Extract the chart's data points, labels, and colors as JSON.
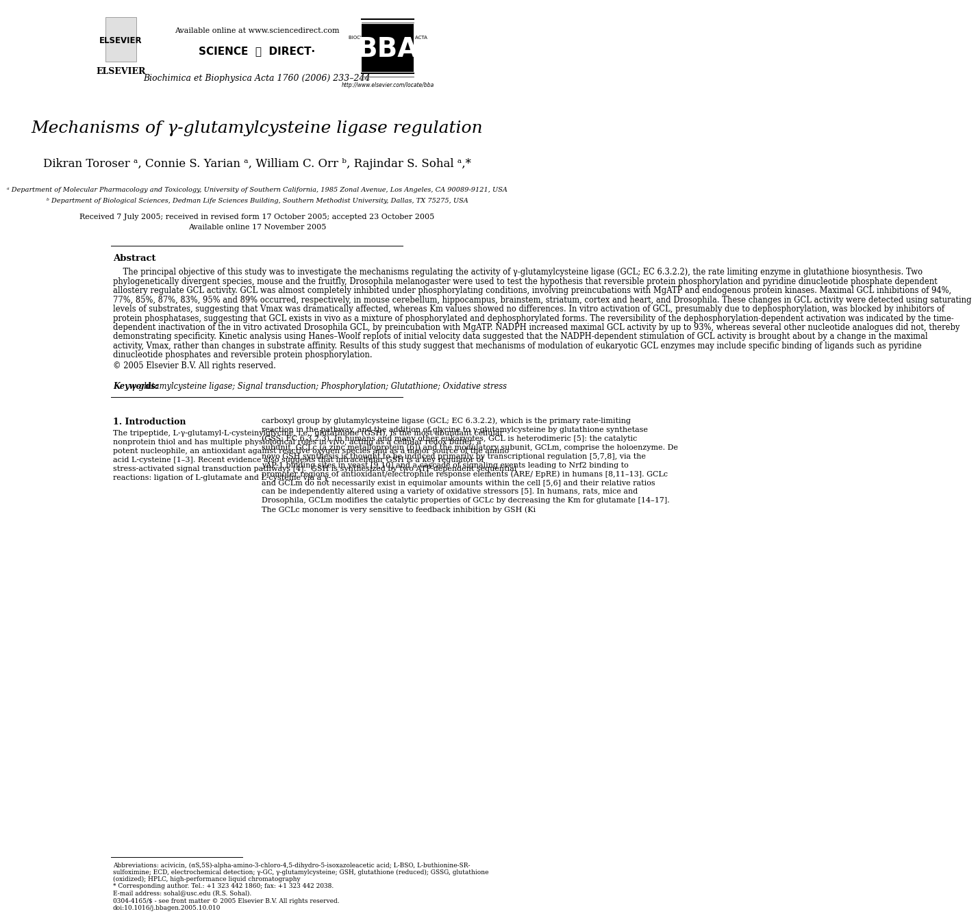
{
  "bg_color": "#ffffff",
  "title": "Mechanisms of γ-glutamylcysteine ligase regulation",
  "authors": "Dikran Toroser ᵃ, Connie S. Yarian ᵃ, William C. Orr ᵇ, Rajindar S. Sohal ᵃ,*",
  "affil_a": "ᵃ Department of Molecular Pharmacology and Toxicology, University of Southern California, 1985 Zonal Avenue, Los Angeles, CA 90089-9121, USA",
  "affil_b": "ᵇ Department of Biological Sciences, Dedman Life Sciences Building, Southern Methodist University, Dallas, TX 75275, USA",
  "received": "Received 7 July 2005; received in revised form 17 October 2005; accepted 23 October 2005",
  "available": "Available online 17 November 2005",
  "header_center_line1": "Available online at www.sciencedirect.com",
  "header_journal": "Biochimica et Biophysica Acta 1760 (2006) 233–244",
  "header_url": "http://www.elsevier.com/locate/bba",
  "abstract_label": "Abstract",
  "abstract_text": "The principal objective of this study was to investigate the mechanisms regulating the activity of γ-glutamylcysteine ligase (GCL; EC 6.3.2.2), the rate limiting enzyme in glutathione biosynthesis. Two phylogenetically divergent species, mouse and the fruitfly, Drosophila melanogaster were used to test the hypothesis that reversible protein phosphorylation and pyridine dinucleotide phosphate dependent allostery regulate GCL activity. GCL was almost completely inhibited under phosphorylating conditions, involving preincubations with MgATP and endogenous protein kinases. Maximal GCL inhibitions of 94%, 77%, 85%, 87%, 83%, 95% and 89% occurred, respectively, in mouse cerebellum, hippocampus, brainstem, striatum, cortex and heart, and Drosophila. These changes in GCL activity were detected using saturating levels of substrates, suggesting that Vmax was dramatically affected, whereas Km values showed no differences. In vitro activation of GCL, presumably due to dephosphorylation, was blocked by inhibitors of protein phosphatases, suggesting that GCL exists in vivo as a mixture of phosphorylated and dephosphorylated forms. The reversibility of the dephosphorylation-dependent activation was indicated by the time-dependent inactivation of the in vitro activated Drosophila GCL, by preincubation with MgATP. NADPH increased maximal GCL activity by up to 93%, whereas several other nucleotide analogues did not, thereby demonstrating specificity. Kinetic analysis using Hanes–Woolf replots of initial velocity data suggested that the NADPH-dependent stimulation of GCL activity is brought about by a change in the maximal activity, Vmax, rather than changes in substrate affinity. Results of this study suggest that mechanisms of modulation of eukaryotic GCL enzymes may include specific binding of ligands such as pyridine dinucleotide phosphates and reversible protein phosphorylation.",
  "copyright": "© 2005 Elsevier B.V. All rights reserved.",
  "keywords_label": "Keywords:",
  "keywords_text": "γ-glutamylcysteine ligase; Signal transduction; Phosphorylation; Glutathione; Oxidative stress",
  "intro_label": "1. Introduction",
  "intro_text_left": "The tripeptide, L-γ-glutamyl-L-cysteinylglycine, i.e., glutathione (GSH), is the most abundant cellular nonprotein thiol and has multiple physiological roles in vivo, acting as a cellular redox buffer, a potent nucleophile, an antioxidant against reactive oxygen species and as a major source of the amino acid L-cysteine [1–3]. Recent evidence also suggests that intracellular GSH is a key regulator of stress-activated signal transduction pathways [4].\n\nGSH is synthesized by two ATP-dependent sequential reactions: ligation of L-glutamate and L-cysteine via a γ-",
  "intro_text_right": "carboxyl group by glutamylcysteine ligase (GCL; EC 6.3.2.2), which is the primary rate-limiting reaction in the pathway, and the addition of glycine to γ-glutamylcysteine by glutathione synthetase (GSS; EC 6.3.2.3). In humans and many other eukaryotes, GCL is heterodimeric [5]: the catalytic subunit, GCLc (a zinc metalloprotein [6]) and the modulatory subunit, GCLm, comprise the holoenzyme. De novo GSH synthesis is thought to be induced primarily by transcriptional regulation [5,7,8], via the yAP-1 binding sites in yeast [9,10] and a cascade of signaling events leading to Nrf2 binding to promoter regions of antioxidant/electrophile response elements (ARE/ EpRE) in humans [8,11–13]. GCLc and GCLm do not necessarily exist in equimolar amounts within the cell [5,6] and their relative ratios can be independently altered using a variety of oxidative stressors [5]. In humans, rats, mice and Drosophila, GCLm modifies the catalytic properties of GCLc by decreasing the Km for glutamate [14–17]. The GCLc monomer is very sensitive to feedback inhibition by GSH (Ki",
  "footnote_abbrev": "Abbreviations: acivicin, (αS,5S)-alpha-amino-3-chloro-4,5-dihydro-5-isoxazoleacetic acid; L-BSO, L-buthionine-SR-sulfoximine; ECD, electrochemical detection; γ-GC, γ-glutamylcysteine; GSH, glutathione (reduced); GSSG, glutathione (oxidized); HPLC, high-performance liquid chromatography",
  "footnote_corresponding": "* Corresponding author. Tel.: +1 323 442 1860; fax: +1 323 442 2038.",
  "footnote_email": "E-mail address: sohal@usc.edu (R.S. Sohal).",
  "footnote_issn": "0304-4165/$ - see front matter © 2005 Elsevier B.V. All rights reserved.",
  "footnote_doi": "doi:10.1016/j.bbagen.2005.10.010"
}
